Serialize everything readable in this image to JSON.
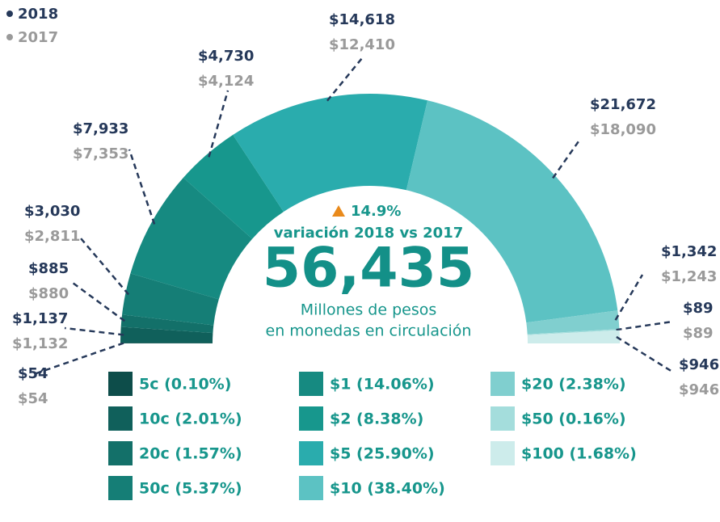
{
  "chart_data": {
    "type": "semi-donut",
    "categories": [
      "5c (0.10%)",
      "10c (2.01%)",
      "20c (1.57%)",
      "50c (5.37%)",
      "$1 (14.06%)",
      "$2 (8.38%)",
      "$5 (25.90%)",
      "$10 (38.40%)",
      "$20 (2.38%)",
      "$50 (0.16%)",
      "$100 (1.68%)"
    ],
    "colors": [
      "#0d4d4a",
      "#10605b",
      "#137069",
      "#157e76",
      "#168a81",
      "#17978d",
      "#2aacad",
      "#5cc2c3",
      "#80cfcf",
      "#a4dddc",
      "#cdeceb"
    ],
    "series": [
      {
        "name": "2018",
        "color": "#26395a",
        "values": [
          54,
          1137,
          885,
          3030,
          7933,
          4730,
          14618,
          21672,
          1342,
          89,
          946
        ],
        "value_labels": [
          "$54",
          "$1,137",
          "$885",
          "$3,030",
          "$7,933",
          "$4,730",
          "$14,618",
          "$21,672",
          "$1,342",
          "$89",
          "$946"
        ]
      },
      {
        "name": "2017",
        "color": "#9a9a9a",
        "values": [
          54,
          1132,
          880,
          2811,
          7353,
          4124,
          12410,
          18090,
          1243,
          89,
          946
        ],
        "value_labels": [
          "$54",
          "$1,132",
          "$880",
          "$2,811",
          "$7,353",
          "$4,124",
          "$12,410",
          "$18,090",
          "$1,243",
          "$89",
          "$946"
        ]
      }
    ],
    "change": {
      "value": 14.9,
      "label": "14.9%"
    },
    "change_caption": "variación 2018 vs 2017",
    "total": {
      "value": 56435,
      "label": "56,435"
    },
    "total_caption": [
      "Millones de pesos",
      "en monedas en circulación"
    ]
  }
}
